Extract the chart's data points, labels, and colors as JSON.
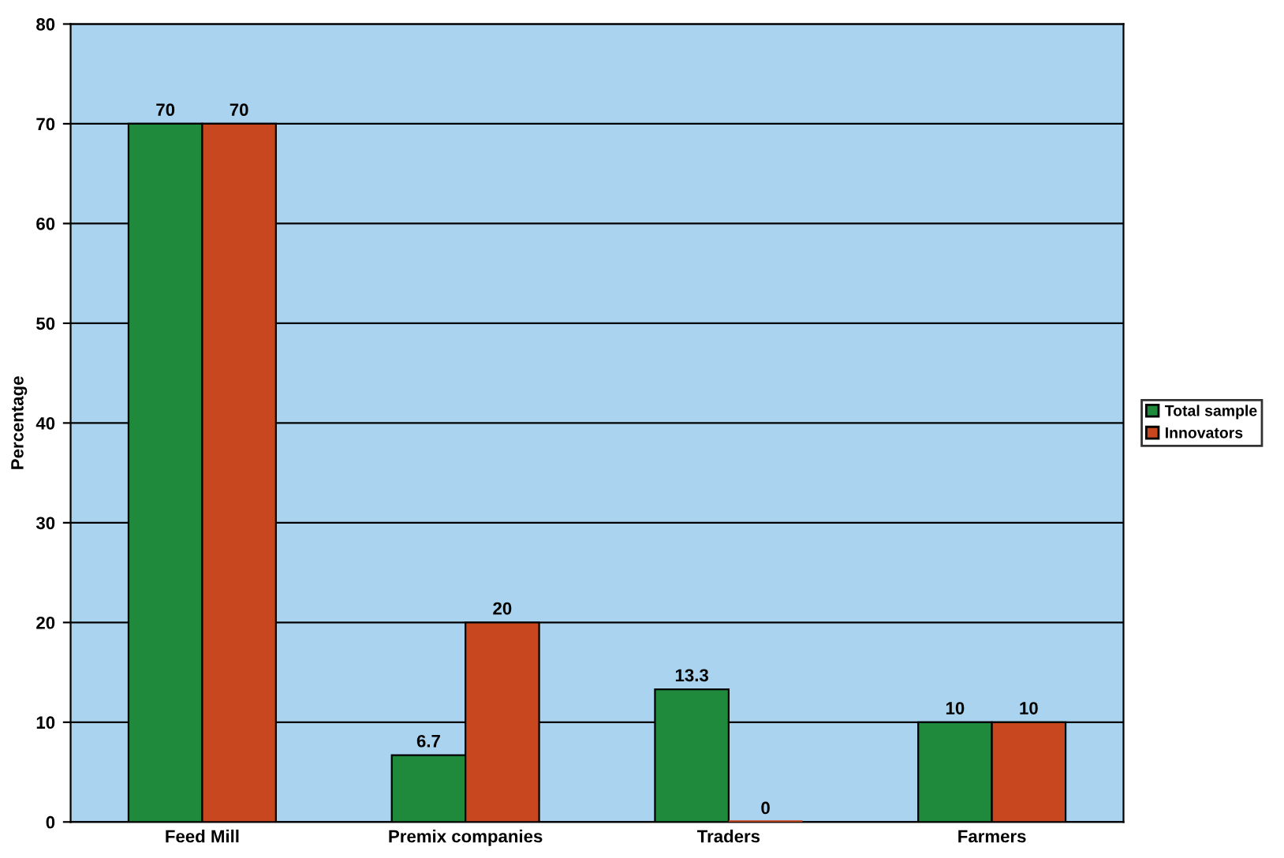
{
  "chart_data": {
    "type": "bar",
    "ylabel": "Percentage",
    "categories": [
      "Feed Mill",
      "Premix companies",
      "Traders",
      "Farmers"
    ],
    "series": [
      {
        "name": "Total sample",
        "color": "#1f8a3c",
        "values": [
          70,
          6.7,
          13.3,
          10
        ]
      },
      {
        "name": "Innovators",
        "color": "#c8471f",
        "values": [
          70,
          20,
          0,
          10
        ]
      }
    ],
    "ylim": [
      0,
      80
    ],
    "yticks": [
      0,
      10,
      20,
      30,
      40,
      50,
      60,
      70,
      80
    ],
    "grid": "y",
    "legend": "right",
    "data_labels": true
  }
}
